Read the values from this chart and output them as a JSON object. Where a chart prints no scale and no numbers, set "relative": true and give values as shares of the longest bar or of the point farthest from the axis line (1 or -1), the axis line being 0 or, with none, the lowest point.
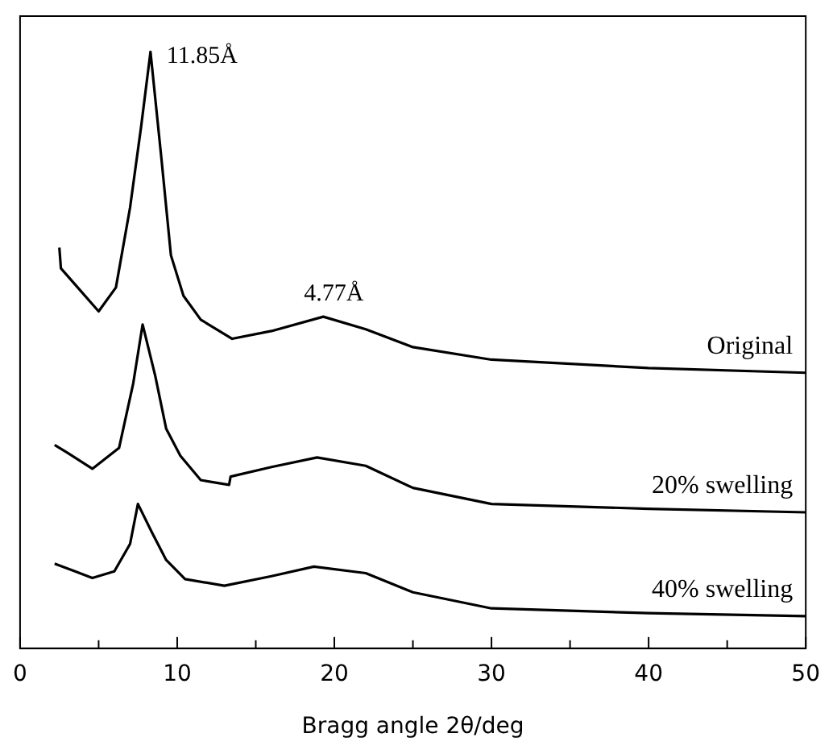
{
  "chart_data": {
    "type": "line",
    "relative": true,
    "xlabel": "Bragg angle 2θ/deg",
    "xlim": [
      0,
      50
    ],
    "xticks": [
      0,
      {
        "value": 5,
        "label": null
      },
      10,
      {
        "value": 15,
        "label": null
      },
      20,
      {
        "value": 25,
        "label": null
      },
      30,
      {
        "value": 35,
        "label": null
      },
      40,
      {
        "value": 45,
        "label": null
      },
      50
    ],
    "grid": false,
    "legend": false,
    "marker": "none",
    "line_style": "solid",
    "annotations": [
      {
        "text": "11.85Å",
        "x": 8.3,
        "y": 1.0
      },
      {
        "text": "4.77Å",
        "x": 19.3,
        "y": 0.556
      }
    ],
    "series": [
      {
        "name": "Original",
        "color": "#000000",
        "x": [
          2.5,
          2.6,
          3.5,
          5.0,
          6.1,
          7.0,
          7.7,
          8.3,
          9.0,
          9.6,
          10.4,
          11.5,
          13.5,
          16,
          19.3,
          22,
          25,
          30,
          40,
          50
        ],
        "values": [
          0.672,
          0.637,
          0.61,
          0.565,
          0.605,
          0.739,
          0.874,
          1.0,
          0.82,
          0.659,
          0.591,
          0.551,
          0.519,
          0.532,
          0.556,
          0.535,
          0.505,
          0.484,
          0.47,
          0.462
        ]
      },
      {
        "name": "20% swelling",
        "color": "#000000",
        "x": [
          2.2,
          3.0,
          4.6,
          6.3,
          7.2,
          7.8,
          8.6,
          9.3,
          10.2,
          11.5,
          13.3,
          13.4,
          16,
          18.9,
          22,
          25,
          30,
          40,
          50
        ],
        "values": [
          0.341,
          0.328,
          0.301,
          0.336,
          0.444,
          0.543,
          0.457,
          0.368,
          0.323,
          0.282,
          0.274,
          0.288,
          0.304,
          0.32,
          0.306,
          0.269,
          0.242,
          0.234,
          0.228
        ]
      },
      {
        "name": "40% swelling",
        "color": "#000000",
        "x": [
          2.2,
          3.5,
          4.6,
          6.0,
          7.0,
          7.5,
          8.4,
          9.3,
          10.5,
          13,
          16,
          18.7,
          22,
          25,
          30,
          40,
          50
        ],
        "values": [
          0.142,
          0.129,
          0.118,
          0.129,
          0.175,
          0.242,
          0.194,
          0.148,
          0.116,
          0.105,
          0.121,
          0.137,
          0.126,
          0.094,
          0.067,
          0.059,
          0.054
        ]
      }
    ]
  }
}
